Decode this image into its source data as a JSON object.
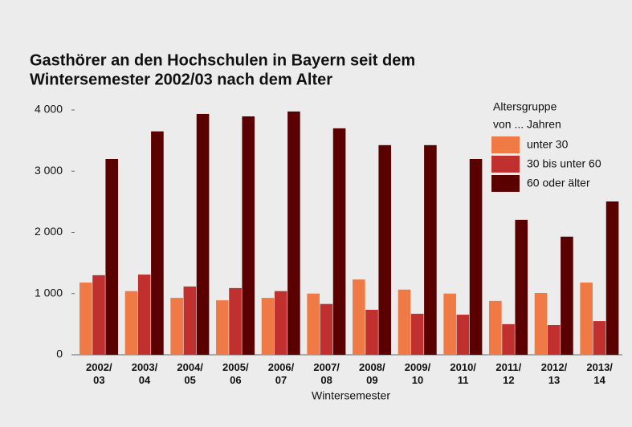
{
  "chart_data": {
    "type": "bar",
    "title": [
      "Gasthörer an den Hochschulen in Bayern seit dem",
      "Wintersemester 2002/03 nach dem Alter"
    ],
    "categories": [
      "2002/\n03",
      "2003/\n04",
      "2004/\n05",
      "2005/\n06",
      "2006/\n07",
      "2007/\n08",
      "2008/\n09",
      "2009/\n10",
      "2010/\n11",
      "2011/\n12",
      "2012/\n13",
      "2013/\n14"
    ],
    "series": [
      {
        "name": "unter 30",
        "color": "#f07a45",
        "values": [
          1180,
          1040,
          930,
          890,
          930,
          1000,
          1230,
          1065,
          1000,
          880,
          1010,
          1180
        ]
      },
      {
        "name": "30 bis unter 60",
        "color": "#c0302f",
        "values": [
          1300,
          1310,
          1115,
          1090,
          1040,
          830,
          735,
          670,
          655,
          500,
          485,
          550
        ]
      },
      {
        "name": "60 oder älter",
        "color": "#5a0000",
        "values": [
          3200,
          3650,
          3935,
          3895,
          3975,
          3700,
          3425,
          3425,
          3200,
          2205,
          1930,
          2505
        ]
      }
    ],
    "legend_title": [
      "Altersgruppe",
      "von ... Jahren"
    ],
    "x_label": "Wintersemester",
    "ylim": [
      0,
      4000
    ],
    "yticks": [
      0,
      {
        "value": 1000,
        "label": "1 000"
      },
      {
        "value": 2000,
        "label": "2 000"
      },
      {
        "value": 3000,
        "label": "3 000"
      },
      {
        "value": 4000,
        "label": "4 000"
      }
    ],
    "grid": false
  }
}
